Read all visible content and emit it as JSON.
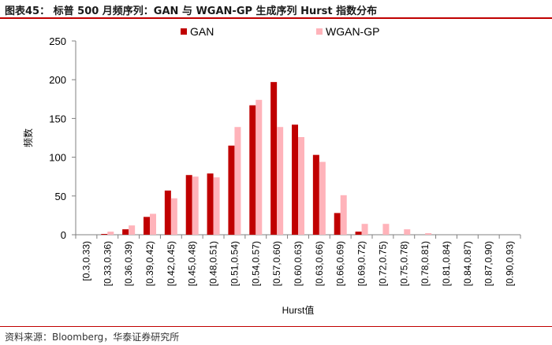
{
  "header": {
    "title": "图表45： 标普 500 月频序列：GAN 与 WGAN-GP 生成序列 Hurst 指数分布"
  },
  "footer": {
    "source": "资料来源：Bloomberg，华泰证券研究所"
  },
  "colors": {
    "accent": "#c00000",
    "gan": "#c00000",
    "wgan": "#ffb3ba",
    "axis": "#808080"
  },
  "chart_data": {
    "type": "bar",
    "title": "",
    "xlabel": "Hurst值",
    "ylabel": "频数",
    "ylim": [
      0,
      250
    ],
    "yticks": [
      0,
      50,
      100,
      150,
      200,
      250
    ],
    "legend_position": "top",
    "categories": [
      "[0.3,0.33)",
      "[0.33,0.36)",
      "[0.36,0.39)",
      "[0.39,0.42)",
      "[0.42,0.45)",
      "[0.45,0.48)",
      "[0.48,0.51)",
      "[0.51,0.54)",
      "[0.54,0.57)",
      "[0.57,0.60)",
      "[0.60,0.63)",
      "[0.63,0.66)",
      "[0.66,0.69)",
      "[0.69,0.72)",
      "[0.72,0.75)",
      "[0.75,0.78)",
      "[0.78,0.81)",
      "[0.81,0.84)",
      "[0.84,0.87)",
      "[0.87,0.90)",
      "[0.90,0.93)"
    ],
    "series": [
      {
        "name": "GAN",
        "color": "#c00000",
        "values": [
          0,
          1,
          7,
          23,
          57,
          77,
          79,
          115,
          167,
          197,
          142,
          103,
          28,
          4,
          0,
          0,
          0,
          0,
          0,
          0,
          0
        ]
      },
      {
        "name": "WGAN-GP",
        "color": "#ffb3ba",
        "values": [
          0,
          4,
          12,
          27,
          47,
          75,
          74,
          139,
          174,
          139,
          126,
          94,
          51,
          14,
          14,
          7,
          2,
          0,
          0,
          0,
          0
        ]
      }
    ]
  }
}
